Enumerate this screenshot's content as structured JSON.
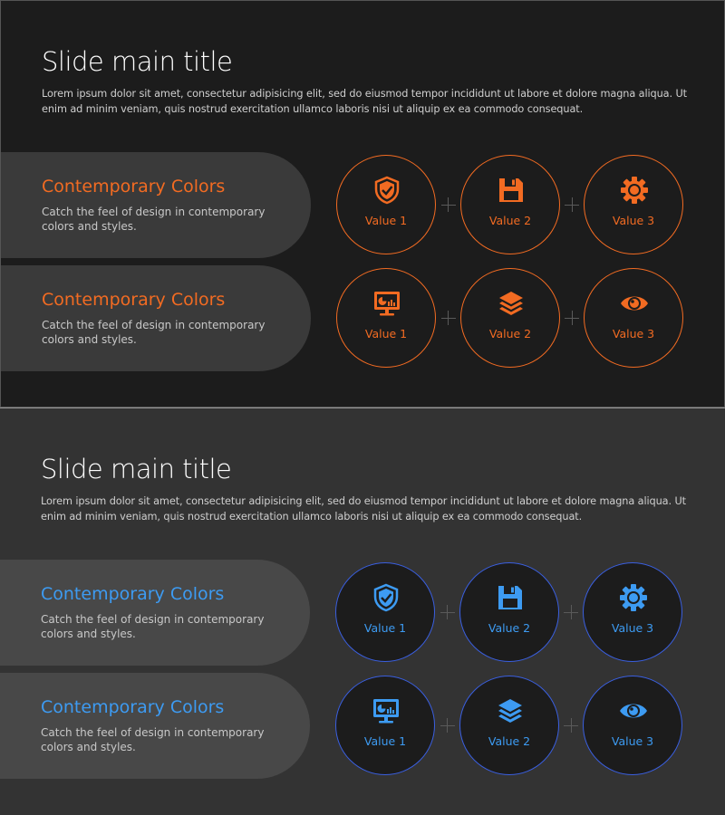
{
  "slides": [
    {
      "title": "Slide main title",
      "description": "Lorem ipsum dolor sit amet, consectetur adipisicing elit, sed do eiusmod tempor incididunt ut labore et dolore magna aliqua. Ut enim ad minim veniam, quis nostrud exercitation ullamco laboris nisi ut aliquip ex ea commodo consequat.",
      "accent": "#f26b22",
      "circle_border": "#f26b22",
      "circle_fill": "transparent",
      "rows": [
        {
          "heading": "Contemporary Colors",
          "text": "Catch the feel of design in contemporary colors and styles.",
          "items": [
            {
              "icon": "shield-check-icon",
              "label": "Value 1"
            },
            {
              "icon": "floppy-disk-icon",
              "label": "Value 2"
            },
            {
              "icon": "gear-icon",
              "label": "Value 3"
            }
          ]
        },
        {
          "heading": "Contemporary Colors",
          "text": "Catch the feel of design in contemporary colors and styles.",
          "items": [
            {
              "icon": "monitor-chart-icon",
              "label": "Value 1"
            },
            {
              "icon": "layers-icon",
              "label": "Value 2"
            },
            {
              "icon": "eye-icon",
              "label": "Value 3"
            }
          ]
        }
      ]
    },
    {
      "title": "Slide main title",
      "description": "Lorem ipsum dolor sit amet, consectetur adipisicing elit, sed do eiusmod tempor incididunt ut labore et dolore magna aliqua. Ut enim ad minim veniam, quis nostrud exercitation ullamco laboris nisi ut aliquip ex ea commodo consequat.",
      "accent": "#3d9bf2",
      "circle_border": "#3a5fe0",
      "circle_fill": "#1c1c1c",
      "rows": [
        {
          "heading": "Contemporary Colors",
          "text": "Catch the feel of design in contemporary colors and styles.",
          "items": [
            {
              "icon": "shield-check-icon",
              "label": "Value 1"
            },
            {
              "icon": "floppy-disk-icon",
              "label": "Value 2"
            },
            {
              "icon": "gear-icon",
              "label": "Value 3"
            }
          ]
        },
        {
          "heading": "Contemporary Colors",
          "text": "Catch the feel of design in contemporary colors and styles.",
          "items": [
            {
              "icon": "monitor-chart-icon",
              "label": "Value 1"
            },
            {
              "icon": "layers-icon",
              "label": "Value 2"
            },
            {
              "icon": "eye-icon",
              "label": "Value 3"
            }
          ]
        }
      ]
    }
  ]
}
